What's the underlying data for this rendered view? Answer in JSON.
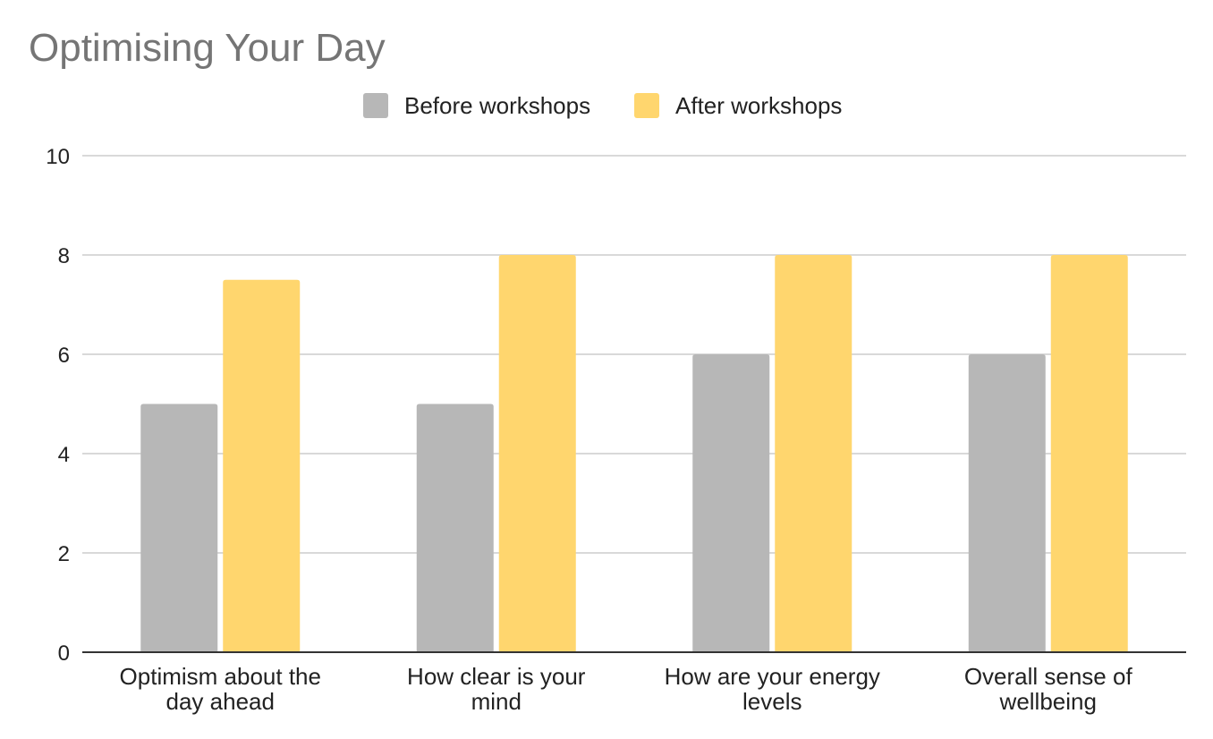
{
  "chart_data": {
    "type": "bar",
    "title": "Optimising Your Day",
    "categories": [
      [
        "Optimism about the",
        "day ahead"
      ],
      [
        "How clear is your",
        "mind"
      ],
      [
        "How are your energy",
        "levels"
      ],
      [
        "Overall sense of",
        "wellbeing"
      ]
    ],
    "series": [
      {
        "name": "Before workshops",
        "color": "#b7b7b7",
        "values": [
          5,
          5,
          6,
          6
        ]
      },
      {
        "name": "After workshops",
        "color": "#ffd66e",
        "values": [
          7.5,
          8,
          8,
          8
        ]
      }
    ],
    "ylim": [
      0,
      10
    ],
    "yticks": [
      0,
      2,
      4,
      6,
      8,
      10
    ],
    "grid": true,
    "legend_position": "top-center",
    "colors": {
      "grid": "#d9d9d9",
      "axis": "#333333"
    }
  }
}
